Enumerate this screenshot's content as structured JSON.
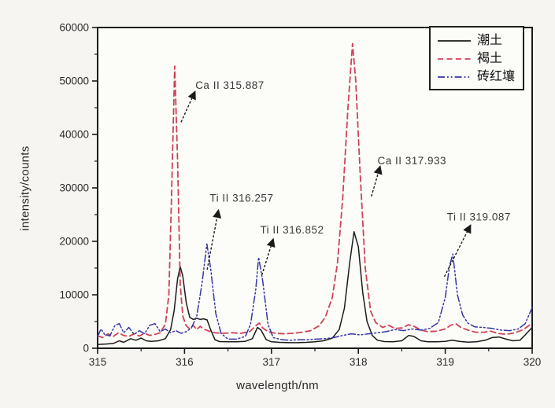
{
  "chart_data": {
    "type": "line",
    "title": "",
    "xlabel": "wavelength/nm",
    "ylabel": "intensity/counts",
    "xlim": [
      315,
      320
    ],
    "ylim": [
      0,
      60000
    ],
    "x_ticks": [
      315,
      316,
      317,
      318,
      319,
      320
    ],
    "y_ticks": [
      0,
      10000,
      20000,
      30000,
      40000,
      50000,
      60000
    ],
    "x_minor_step": 0.5,
    "y_minor_step": 5000,
    "grid": "off",
    "legend_position": "top-right",
    "frame_color": "#1b1b1b",
    "series": [
      {
        "name": "潮土",
        "color": "#1b1b1b",
        "dash": "solid",
        "points": [
          [
            315.0,
            700
          ],
          [
            315.05,
            750
          ],
          [
            315.1,
            800
          ],
          [
            315.18,
            900
          ],
          [
            315.25,
            1400
          ],
          [
            315.3,
            1100
          ],
          [
            315.38,
            1800
          ],
          [
            315.44,
            1500
          ],
          [
            315.5,
            1900
          ],
          [
            315.56,
            1400
          ],
          [
            315.62,
            1300
          ],
          [
            315.7,
            1400
          ],
          [
            315.78,
            1800
          ],
          [
            315.84,
            3500
          ],
          [
            315.88,
            7000
          ],
          [
            315.92,
            13000
          ],
          [
            315.95,
            15300
          ],
          [
            315.98,
            13500
          ],
          [
            316.02,
            8500
          ],
          [
            316.06,
            5800
          ],
          [
            316.1,
            5400
          ],
          [
            316.14,
            5600
          ],
          [
            316.18,
            5400
          ],
          [
            316.22,
            5500
          ],
          [
            316.26,
            5300
          ],
          [
            316.3,
            3500
          ],
          [
            316.35,
            1600
          ],
          [
            316.4,
            1250
          ],
          [
            316.5,
            1200
          ],
          [
            316.6,
            1200
          ],
          [
            316.7,
            1300
          ],
          [
            316.78,
            1800
          ],
          [
            316.84,
            3900
          ],
          [
            316.88,
            3400
          ],
          [
            316.94,
            1600
          ],
          [
            317.0,
            1200
          ],
          [
            317.1,
            1100
          ],
          [
            317.2,
            1050
          ],
          [
            317.3,
            1050
          ],
          [
            317.4,
            1100
          ],
          [
            317.5,
            1200
          ],
          [
            317.6,
            1400
          ],
          [
            317.7,
            1900
          ],
          [
            317.78,
            3500
          ],
          [
            317.84,
            7500
          ],
          [
            317.9,
            16000
          ],
          [
            317.95,
            21800
          ],
          [
            318.0,
            19000
          ],
          [
            318.05,
            10500
          ],
          [
            318.1,
            5000
          ],
          [
            318.16,
            2400
          ],
          [
            318.22,
            1500
          ],
          [
            318.3,
            1250
          ],
          [
            318.4,
            1200
          ],
          [
            318.5,
            1400
          ],
          [
            318.58,
            2400
          ],
          [
            318.64,
            2200
          ],
          [
            318.72,
            1400
          ],
          [
            318.8,
            1200
          ],
          [
            318.9,
            1200
          ],
          [
            319.0,
            1300
          ],
          [
            319.08,
            1500
          ],
          [
            319.16,
            1300
          ],
          [
            319.26,
            1150
          ],
          [
            319.36,
            1200
          ],
          [
            319.46,
            1500
          ],
          [
            319.54,
            2000
          ],
          [
            319.62,
            2100
          ],
          [
            319.7,
            1700
          ],
          [
            319.78,
            1400
          ],
          [
            319.86,
            1500
          ],
          [
            319.92,
            2500
          ],
          [
            320.0,
            3900
          ]
        ]
      },
      {
        "name": "褐土",
        "color": "#cf4256",
        "dash": "dashed",
        "points": [
          [
            315.0,
            2300
          ],
          [
            315.06,
            2000
          ],
          [
            315.12,
            2700
          ],
          [
            315.18,
            2200
          ],
          [
            315.24,
            2900
          ],
          [
            315.3,
            2400
          ],
          [
            315.36,
            2200
          ],
          [
            315.42,
            2700
          ],
          [
            315.48,
            2300
          ],
          [
            315.54,
            2800
          ],
          [
            315.6,
            2400
          ],
          [
            315.66,
            2600
          ],
          [
            315.72,
            2900
          ],
          [
            315.78,
            4500
          ],
          [
            315.82,
            10000
          ],
          [
            315.85,
            28000
          ],
          [
            315.887,
            52800
          ],
          [
            315.92,
            35000
          ],
          [
            315.95,
            12000
          ],
          [
            315.98,
            6000
          ],
          [
            316.02,
            4200
          ],
          [
            316.06,
            3600
          ],
          [
            316.1,
            4300
          ],
          [
            316.14,
            3500
          ],
          [
            316.18,
            4100
          ],
          [
            316.22,
            3600
          ],
          [
            316.28,
            3200
          ],
          [
            316.35,
            2900
          ],
          [
            316.45,
            2800
          ],
          [
            316.55,
            2900
          ],
          [
            316.65,
            2800
          ],
          [
            316.75,
            3100
          ],
          [
            316.82,
            4200
          ],
          [
            316.86,
            4700
          ],
          [
            316.9,
            3800
          ],
          [
            316.96,
            3100
          ],
          [
            317.05,
            2800
          ],
          [
            317.15,
            2700
          ],
          [
            317.25,
            2800
          ],
          [
            317.35,
            3000
          ],
          [
            317.45,
            3300
          ],
          [
            317.55,
            4200
          ],
          [
            317.62,
            5800
          ],
          [
            317.7,
            9500
          ],
          [
            317.76,
            16000
          ],
          [
            317.82,
            28000
          ],
          [
            317.88,
            45000
          ],
          [
            317.933,
            57000
          ],
          [
            317.97,
            50000
          ],
          [
            318.02,
            33000
          ],
          [
            318.08,
            15000
          ],
          [
            318.14,
            7000
          ],
          [
            318.2,
            4800
          ],
          [
            318.28,
            3900
          ],
          [
            318.35,
            4300
          ],
          [
            318.42,
            3700
          ],
          [
            318.5,
            3800
          ],
          [
            318.58,
            4400
          ],
          [
            318.64,
            4100
          ],
          [
            318.72,
            3400
          ],
          [
            318.8,
            3100
          ],
          [
            318.9,
            3200
          ],
          [
            319.0,
            3600
          ],
          [
            319.06,
            4300
          ],
          [
            319.12,
            4600
          ],
          [
            319.18,
            3900
          ],
          [
            319.26,
            3400
          ],
          [
            319.35,
            3000
          ],
          [
            319.45,
            3000
          ],
          [
            319.52,
            3200
          ],
          [
            319.6,
            2800
          ],
          [
            319.7,
            2600
          ],
          [
            319.8,
            2900
          ],
          [
            319.9,
            3500
          ],
          [
            320.0,
            4700
          ]
        ]
      },
      {
        "name": "砖红壤",
        "color": "#3535a3",
        "dash": "dash-dot-dot",
        "points": [
          [
            315.0,
            2200
          ],
          [
            315.04,
            3600
          ],
          [
            315.08,
            2600
          ],
          [
            315.14,
            2300
          ],
          [
            315.2,
            4300
          ],
          [
            315.25,
            4600
          ],
          [
            315.3,
            2900
          ],
          [
            315.36,
            3900
          ],
          [
            315.42,
            2600
          ],
          [
            315.48,
            3300
          ],
          [
            315.54,
            2700
          ],
          [
            315.6,
            4300
          ],
          [
            315.66,
            4600
          ],
          [
            315.72,
            3100
          ],
          [
            315.78,
            3600
          ],
          [
            315.84,
            2900
          ],
          [
            315.9,
            3300
          ],
          [
            315.96,
            2800
          ],
          [
            316.02,
            3100
          ],
          [
            316.08,
            3800
          ],
          [
            316.14,
            6000
          ],
          [
            316.2,
            12000
          ],
          [
            316.257,
            19500
          ],
          [
            316.3,
            15000
          ],
          [
            316.36,
            6500
          ],
          [
            316.42,
            2800
          ],
          [
            316.5,
            1700
          ],
          [
            316.6,
            1700
          ],
          [
            316.7,
            2200
          ],
          [
            316.76,
            4500
          ],
          [
            316.82,
            11000
          ],
          [
            316.852,
            17000
          ],
          [
            316.9,
            12500
          ],
          [
            316.96,
            4500
          ],
          [
            317.02,
            2000
          ],
          [
            317.12,
            1600
          ],
          [
            317.22,
            1500
          ],
          [
            317.32,
            1600
          ],
          [
            317.42,
            1600
          ],
          [
            317.52,
            1700
          ],
          [
            317.62,
            1800
          ],
          [
            317.72,
            2000
          ],
          [
            317.82,
            2400
          ],
          [
            317.92,
            2700
          ],
          [
            318.02,
            2500
          ],
          [
            318.12,
            2700
          ],
          [
            318.22,
            2900
          ],
          [
            318.32,
            3100
          ],
          [
            318.42,
            3500
          ],
          [
            318.52,
            3300
          ],
          [
            318.62,
            3600
          ],
          [
            318.72,
            3400
          ],
          [
            318.82,
            3700
          ],
          [
            318.92,
            4800
          ],
          [
            319.0,
            9500
          ],
          [
            319.05,
            15500
          ],
          [
            319.087,
            17600
          ],
          [
            319.14,
            10000
          ],
          [
            319.2,
            6200
          ],
          [
            319.26,
            4700
          ],
          [
            319.34,
            4000
          ],
          [
            319.44,
            3900
          ],
          [
            319.54,
            3700
          ],
          [
            319.64,
            3400
          ],
          [
            319.74,
            3300
          ],
          [
            319.84,
            3600
          ],
          [
            319.92,
            4600
          ],
          [
            320.0,
            7600
          ]
        ]
      }
    ],
    "annotations": [
      {
        "label": "Ca II 315.887",
        "text_at": [
          316.125,
          48500
        ],
        "arrow_from": [
          315.96,
          42300
        ],
        "arrow_to": [
          316.12,
          48000
        ]
      },
      {
        "label": "Ti II 316.257",
        "text_at": [
          316.29,
          27400
        ],
        "arrow_from": [
          316.26,
          14700
        ],
        "arrow_to": [
          316.39,
          25800
        ]
      },
      {
        "label": "Ti II 316.852",
        "text_at": [
          316.87,
          21500
        ],
        "arrow_from": [
          316.89,
          13700
        ],
        "arrow_to": [
          317.02,
          20400
        ]
      },
      {
        "label": "Ca II 317.933",
        "text_at": [
          318.22,
          34400
        ],
        "arrow_from": [
          318.15,
          28400
        ],
        "arrow_to": [
          318.25,
          34000
        ]
      },
      {
        "label": "Ti II 319.087",
        "text_at": [
          319.02,
          23900
        ],
        "arrow_from": [
          318.99,
          13400
        ],
        "arrow_to": [
          319.29,
          23000
        ]
      }
    ]
  }
}
